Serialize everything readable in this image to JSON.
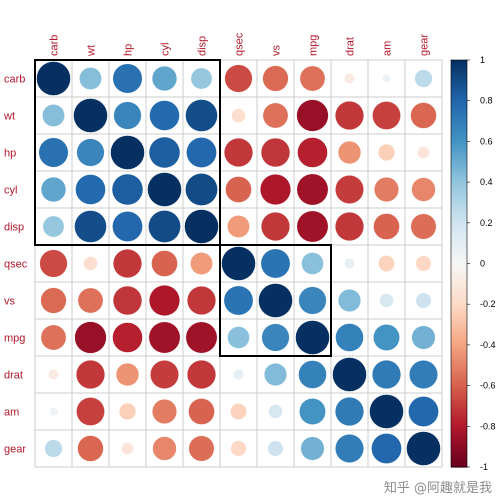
{
  "chart_data": {
    "type": "heatmap",
    "variables": [
      "carb",
      "wt",
      "hp",
      "cyl",
      "disp",
      "qsec",
      "vs",
      "mpg",
      "drat",
      "am",
      "gear"
    ],
    "matrix": [
      [
        1.0,
        0.43,
        0.75,
        0.53,
        0.39,
        -0.66,
        -0.57,
        -0.55,
        -0.09,
        0.06,
        0.27
      ],
      [
        0.43,
        1.0,
        0.66,
        0.78,
        0.89,
        -0.17,
        -0.55,
        -0.87,
        -0.71,
        -0.69,
        -0.58
      ],
      [
        0.75,
        0.66,
        1.0,
        0.83,
        0.79,
        -0.71,
        -0.72,
        -0.78,
        -0.45,
        -0.24,
        -0.13
      ],
      [
        0.53,
        0.78,
        0.83,
        1.0,
        0.9,
        -0.59,
        -0.81,
        -0.85,
        -0.7,
        -0.52,
        -0.49
      ],
      [
        0.39,
        0.89,
        0.79,
        0.9,
        1.0,
        -0.43,
        -0.71,
        -0.85,
        -0.71,
        -0.59,
        -0.56
      ],
      [
        -0.66,
        -0.17,
        -0.71,
        -0.59,
        -0.43,
        1.0,
        0.74,
        0.42,
        0.09,
        -0.23,
        -0.21
      ],
      [
        -0.57,
        -0.55,
        -0.72,
        -0.81,
        -0.71,
        0.74,
        1.0,
        0.66,
        0.44,
        0.17,
        0.21
      ],
      [
        -0.55,
        -0.87,
        -0.78,
        -0.85,
        -0.85,
        0.42,
        0.66,
        1.0,
        0.68,
        0.6,
        0.48
      ],
      [
        -0.09,
        -0.71,
        -0.45,
        -0.7,
        -0.71,
        0.09,
        0.44,
        0.68,
        1.0,
        0.71,
        0.7
      ],
      [
        0.06,
        -0.69,
        -0.24,
        -0.52,
        -0.59,
        -0.23,
        0.17,
        0.6,
        0.71,
        1.0,
        0.79
      ],
      [
        0.27,
        -0.58,
        -0.13,
        -0.49,
        -0.56,
        -0.21,
        0.21,
        0.48,
        0.7,
        0.79,
        1.0
      ]
    ],
    "clusters": [
      [
        0,
        4
      ],
      [
        5,
        7
      ]
    ],
    "colorbar": {
      "ticks": [
        1,
        0.8,
        0.6,
        0.4,
        0.2,
        0,
        -0.2,
        -0.4,
        -0.6,
        -0.8,
        -1
      ],
      "tick_labels": [
        "1",
        "0.8",
        "0.6",
        "0.4",
        "0.2",
        "0",
        "-0.2",
        "-0.4",
        "-0.6",
        "-0.8",
        "-1"
      ],
      "range": [
        -1,
        1
      ]
    },
    "label_color": "#b2182b",
    "grid_color": "#cccccc",
    "palette": [
      "#67001f",
      "#b2182b",
      "#d6604d",
      "#f4a582",
      "#fddbc7",
      "#f7f7f7",
      "#d1e5f0",
      "#92c5de",
      "#4393c3",
      "#2166ac",
      "#053061"
    ]
  },
  "watermark": "知乎 @阿趣就是我"
}
